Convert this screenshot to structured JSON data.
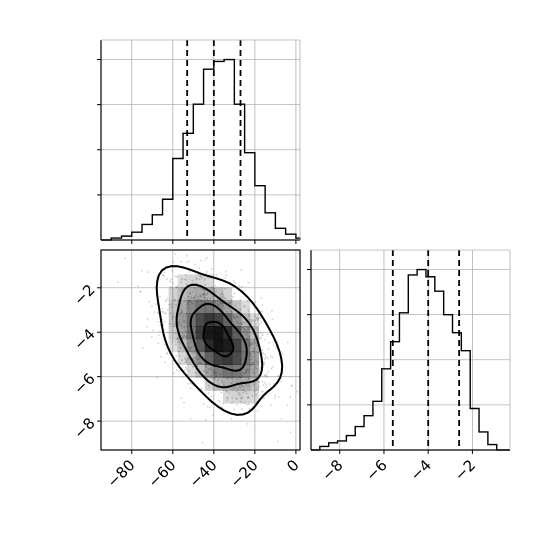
{
  "chart_data": {
    "type": "corner",
    "colors": {
      "line": "#000000",
      "grid": "#b0b0b0",
      "density": "#000000",
      "points": "#808080"
    },
    "grid": true,
    "panels": [
      {
        "id": "hist-x",
        "type": "histogram",
        "xlim": [
          -95,
          2
        ],
        "ticks": [
          -80,
          -60,
          -40,
          -20,
          0
        ],
        "quantiles": [
          -53,
          -40,
          -27
        ],
        "bin_edges": [
          -95,
          -90,
          -85,
          -80,
          -75,
          -70,
          -65,
          -60,
          -55,
          -50,
          -45,
          -40,
          -35,
          -30,
          -25,
          -20,
          -15,
          -10,
          -5,
          0,
          2
        ],
        "counts": [
          0.0,
          0.01,
          0.02,
          0.04,
          0.08,
          0.13,
          0.21,
          0.42,
          0.55,
          0.7,
          0.88,
          0.92,
          0.93,
          0.7,
          0.45,
          0.28,
          0.14,
          0.06,
          0.03,
          0.01
        ]
      },
      {
        "id": "scatter-2d",
        "type": "density2d",
        "xlim": [
          -95,
          2
        ],
        "ylim": [
          -9.3,
          -0.3
        ],
        "x_ticks": [
          -80,
          -60,
          -40,
          -20,
          0
        ],
        "y_ticks": [
          -2,
          -4,
          -6,
          -8
        ],
        "mode": {
          "x": -38,
          "y": -4.3
        },
        "spread": {
          "x": 13,
          "y": 1.4
        },
        "correlation": -0.45
      },
      {
        "id": "hist-y",
        "type": "histogram",
        "xlim": [
          -9.3,
          -0.3
        ],
        "ticks": [
          -8,
          -6,
          -4,
          -2
        ],
        "quantiles": [
          -5.6,
          -4.0,
          -2.6
        ],
        "bin_edges": [
          -9.3,
          -8.9,
          -8.5,
          -8.1,
          -7.7,
          -7.3,
          -6.9,
          -6.5,
          -6.1,
          -5.7,
          -5.3,
          -4.9,
          -4.5,
          -4.1,
          -3.7,
          -3.3,
          -2.9,
          -2.5,
          -2.1,
          -1.7,
          -1.3,
          -0.9,
          -0.3
        ],
        "counts": [
          0.0,
          0.02,
          0.04,
          0.05,
          0.08,
          0.13,
          0.19,
          0.27,
          0.45,
          0.6,
          0.76,
          0.97,
          1.0,
          0.96,
          0.88,
          0.75,
          0.65,
          0.55,
          0.23,
          0.1,
          0.03,
          0.0
        ]
      }
    ]
  }
}
